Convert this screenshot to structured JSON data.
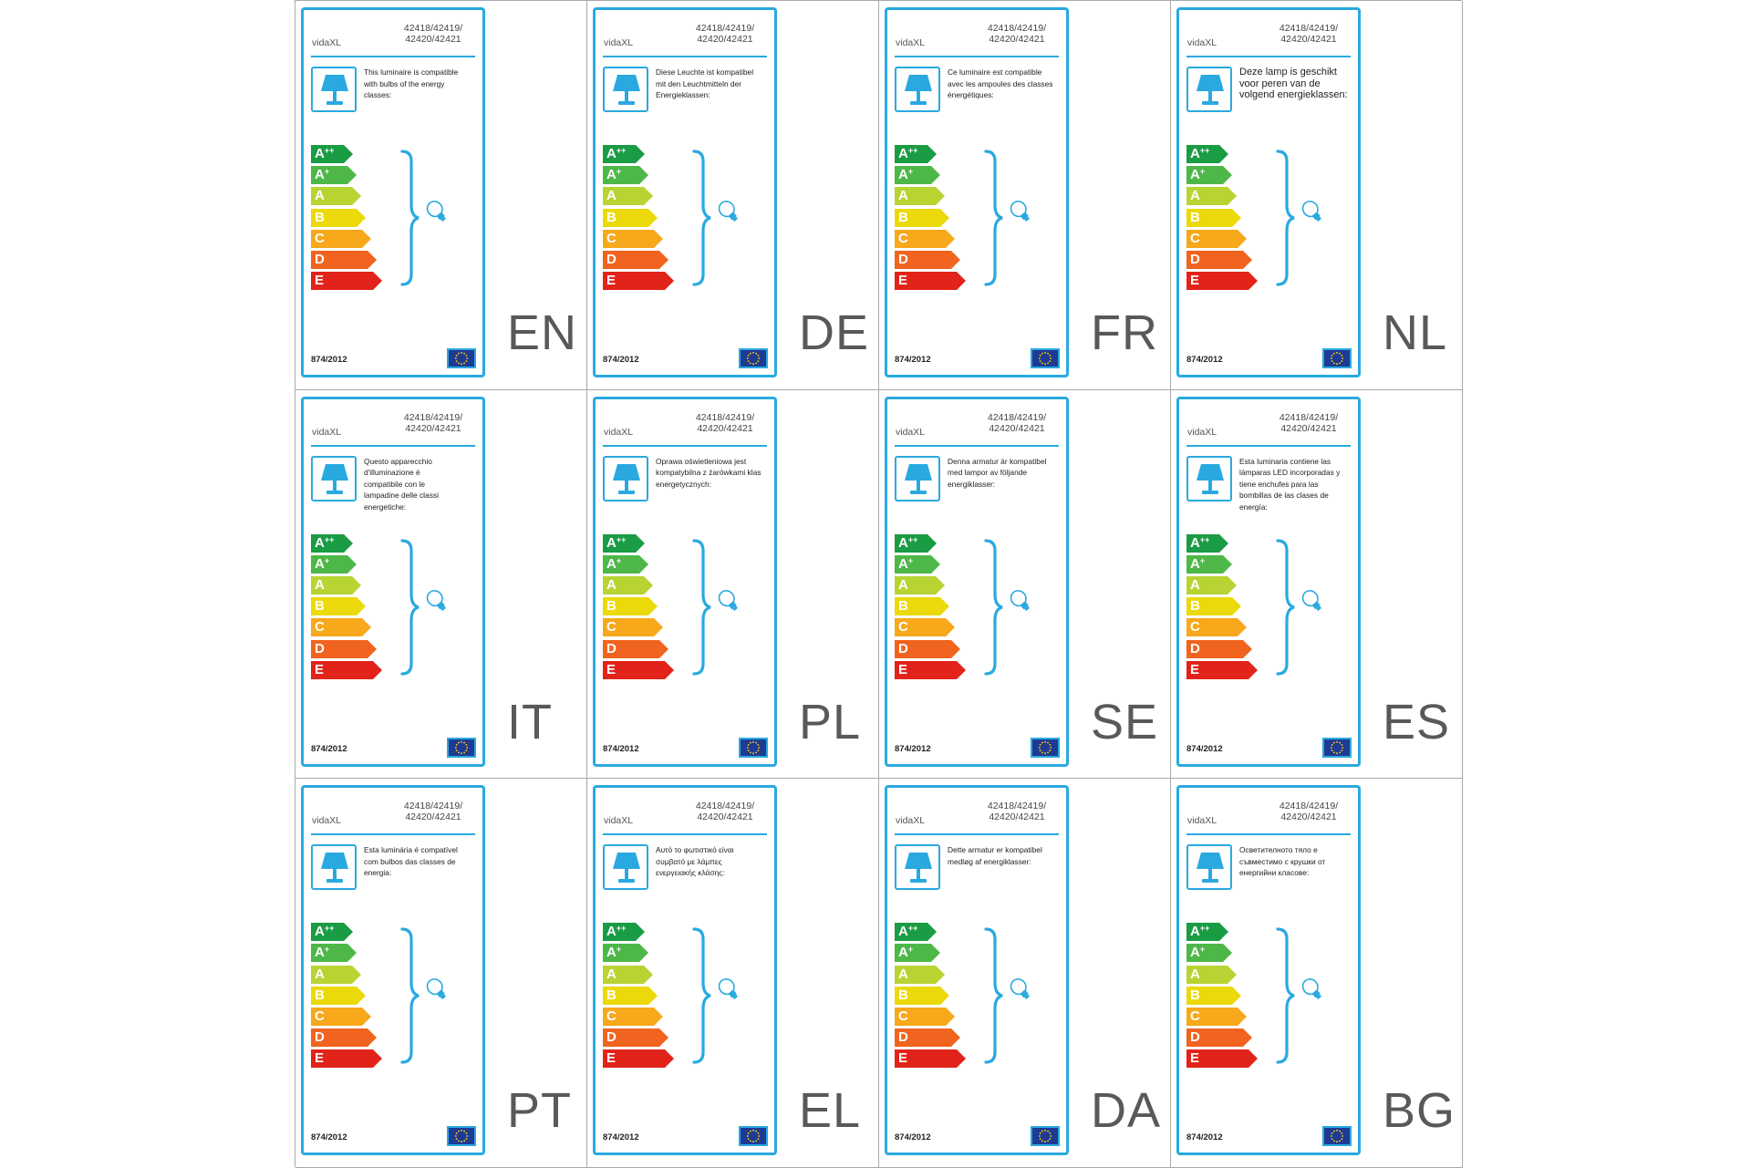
{
  "brand": "vidaXL",
  "models": "42418/42419/\n42420/42421",
  "regulation": "874/2012",
  "classes": [
    {
      "letter": "A",
      "sup": "++",
      "color": "#1a9c44"
    },
    {
      "letter": "A",
      "sup": "+",
      "color": "#4db848"
    },
    {
      "letter": "A",
      "sup": "",
      "color": "#b7d433"
    },
    {
      "letter": "B",
      "sup": "",
      "color": "#ecd90a"
    },
    {
      "letter": "C",
      "sup": "",
      "color": "#f7a81b"
    },
    {
      "letter": "D",
      "sup": "",
      "color": "#f0641f"
    },
    {
      "letter": "E",
      "sup": "",
      "color": "#e2231a"
    }
  ],
  "colors": {
    "accent": "#29a9e0",
    "eu_blue": "#1f3a93",
    "eu_star": "#ffdd00",
    "divider": "#a7a9ac"
  },
  "icons": {
    "lamp": "table-lamp-icon",
    "bulb": "light-bulb-icon",
    "brace": "curly-brace-icon",
    "flag": "eu-flag-icon"
  },
  "labels": [
    {
      "lang": "EN",
      "text": "This luminaire is compatible\nwith bulbs of the energy\nclasses:",
      "big": false
    },
    {
      "lang": "DE",
      "text": "Diese Leuchte ist kompatibel\nmit den Leuchtmitteln der\nEnergieklassen:",
      "big": false
    },
    {
      "lang": "FR",
      "text": "Ce luminaire est compatible\navec les ampoules des classes\nénergétiques:",
      "big": false
    },
    {
      "lang": "NL",
      "text": "Deze lamp is geschikt\nvoor peren van de\nvolgend energieklassen:",
      "big": true
    },
    {
      "lang": "IT",
      "text": "Questo apparecchio\nd'illuminazione è\ncompatibile con le\nlampadine delle classi\nenergetiche:",
      "big": false
    },
    {
      "lang": "PL",
      "text": "Oprawa oświetleniowa jest\nkompatybilna z żarówkami klas\nenergetycznych:",
      "big": false
    },
    {
      "lang": "SE",
      "text": "Denna armatur är kompatibel\nmed lampor av följande\nenergiklasser:",
      "big": false
    },
    {
      "lang": "ES",
      "text": "Esta luminaria contiene las\nlámparas LED incorporadas y\ntiene enchufes para las\nbombillas de las clases de\nenergía:",
      "big": false
    },
    {
      "lang": "PT",
      "text": "Esta luminária é compatível\ncom bulbos das classes de\nenergia:",
      "big": false
    },
    {
      "lang": "EL",
      "text": "Αυτό το φωτιστικό είναι\nσυμβατό με λάμπες\nενεργειακής κλάσης:",
      "big": false
    },
    {
      "lang": "DA",
      "text": "Dette armatur er kompatibel\nmedløg af energiklasser:",
      "big": false
    },
    {
      "lang": "BG",
      "text": "Осветителното тяло е\nсъвместимо с крушки от\nенергийни класове:",
      "big": false
    }
  ]
}
